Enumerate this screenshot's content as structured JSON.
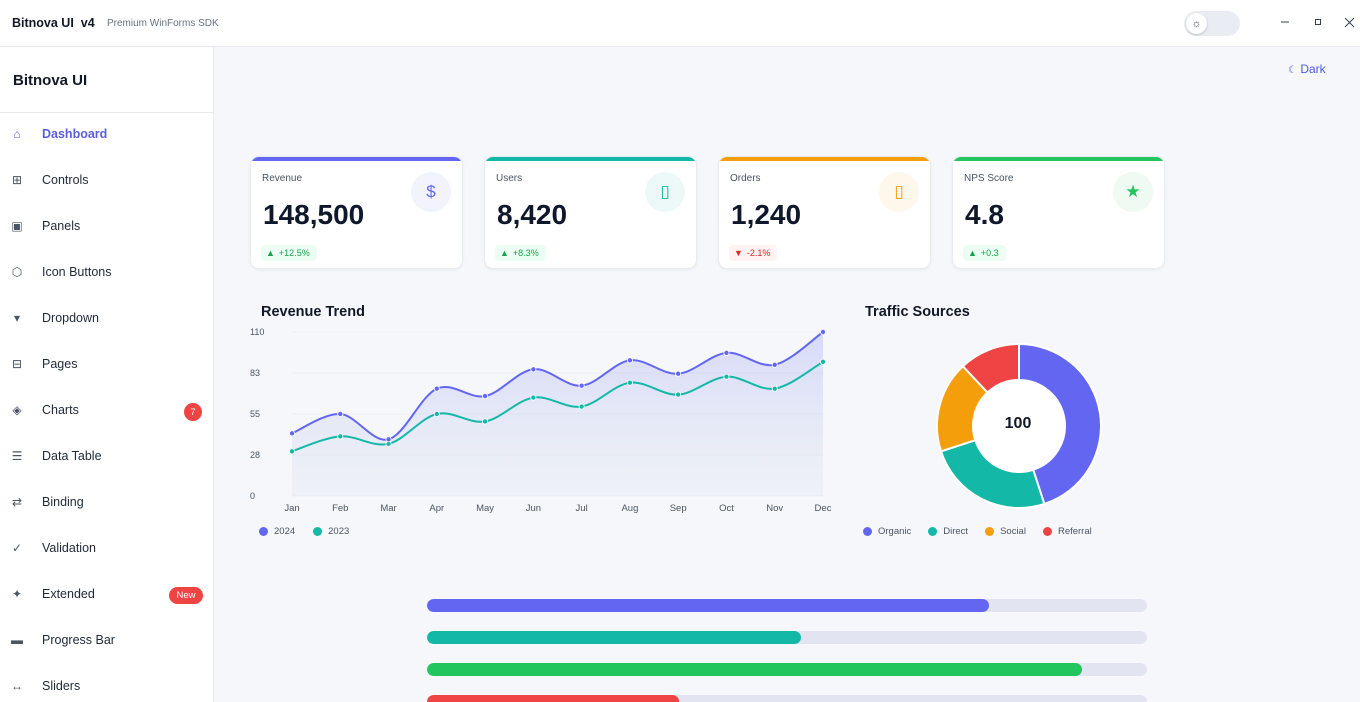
{
  "titlebar": {
    "app_title": "Bitnova UI  v4",
    "subtitle": "Premium WinForms SDK"
  },
  "sidebar": {
    "brand": "Bitnova UI",
    "items": [
      {
        "label": "Dashboard",
        "icon": "home-icon",
        "active": true
      },
      {
        "label": "Controls",
        "icon": "grid-icon"
      },
      {
        "label": "Panels",
        "icon": "panel-icon"
      },
      {
        "label": "Icon Buttons",
        "icon": "hexagon-icon"
      },
      {
        "label": "Dropdown",
        "icon": "caret-down-icon"
      },
      {
        "label": "Pages",
        "icon": "pages-icon"
      },
      {
        "label": "Charts",
        "icon": "diamond-icon",
        "badge": "7"
      },
      {
        "label": "Data Table",
        "icon": "list-icon"
      },
      {
        "label": "Binding",
        "icon": "swap-icon"
      },
      {
        "label": "Validation",
        "icon": "check-icon"
      },
      {
        "label": "Extended",
        "icon": "sparkle-icon",
        "badge": "New"
      },
      {
        "label": "Progress Bar",
        "icon": "bar-icon"
      },
      {
        "label": "Sliders",
        "icon": "arrows-horizontal-icon"
      }
    ]
  },
  "header": {
    "dark_label": "Dark"
  },
  "kpis": [
    {
      "label": "Revenue",
      "value": "148,500",
      "delta": "+12.5%",
      "trend": "up",
      "accent": "#6366f1",
      "icon": "dollar-icon",
      "glyph": "$"
    },
    {
      "label": "Users",
      "value": "8,420",
      "delta": "+8.3%",
      "trend": "up",
      "accent": "#14b8a6",
      "icon": "users-icon",
      "glyph": "▯"
    },
    {
      "label": "Orders",
      "value": "1,240",
      "delta": "-2.1%",
      "trend": "down",
      "accent": "#f59e0b",
      "icon": "orders-icon",
      "glyph": "▯"
    },
    {
      "label": "NPS Score",
      "value": "4.8",
      "delta": "+0.3",
      "trend": "up",
      "accent": "#22c55e",
      "icon": "star-icon",
      "glyph": "★"
    }
  ],
  "chart_data": [
    {
      "type": "area",
      "title": "Revenue Trend",
      "categories": [
        "Jan",
        "Feb",
        "Mar",
        "Apr",
        "May",
        "Jun",
        "Jul",
        "Aug",
        "Sep",
        "Oct",
        "Nov",
        "Dec"
      ],
      "series": [
        {
          "name": "2024",
          "color": "#6366f1",
          "values": [
            42,
            55,
            38,
            72,
            67,
            85,
            74,
            91,
            82,
            96,
            88,
            110
          ]
        },
        {
          "name": "2023",
          "color": "#14b8a6",
          "values": [
            30,
            40,
            35,
            55,
            50,
            66,
            60,
            76,
            68,
            80,
            72,
            90
          ]
        }
      ],
      "y_ticks": [
        "0",
        "28",
        "55",
        "83",
        "110"
      ],
      "ylim": [
        0,
        110
      ],
      "grid": true,
      "legend": "bottom-left"
    },
    {
      "type": "pie",
      "title": "Traffic Sources",
      "center_label": "100",
      "categories": [
        "Organic",
        "Direct",
        "Social",
        "Referral"
      ],
      "values": [
        45,
        25,
        18,
        12
      ],
      "colors": [
        "#6366f1",
        "#14b8a6",
        "#f59e0b",
        "#ef4444"
      ],
      "legend": "bottom"
    }
  ],
  "progress": [
    {
      "value": 0.78,
      "color": "#6366f1"
    },
    {
      "value": 0.52,
      "color": "#14b8a6"
    },
    {
      "value": 0.91,
      "color": "#22c55e"
    },
    {
      "value": 0.35,
      "color": "#ef4444"
    }
  ]
}
